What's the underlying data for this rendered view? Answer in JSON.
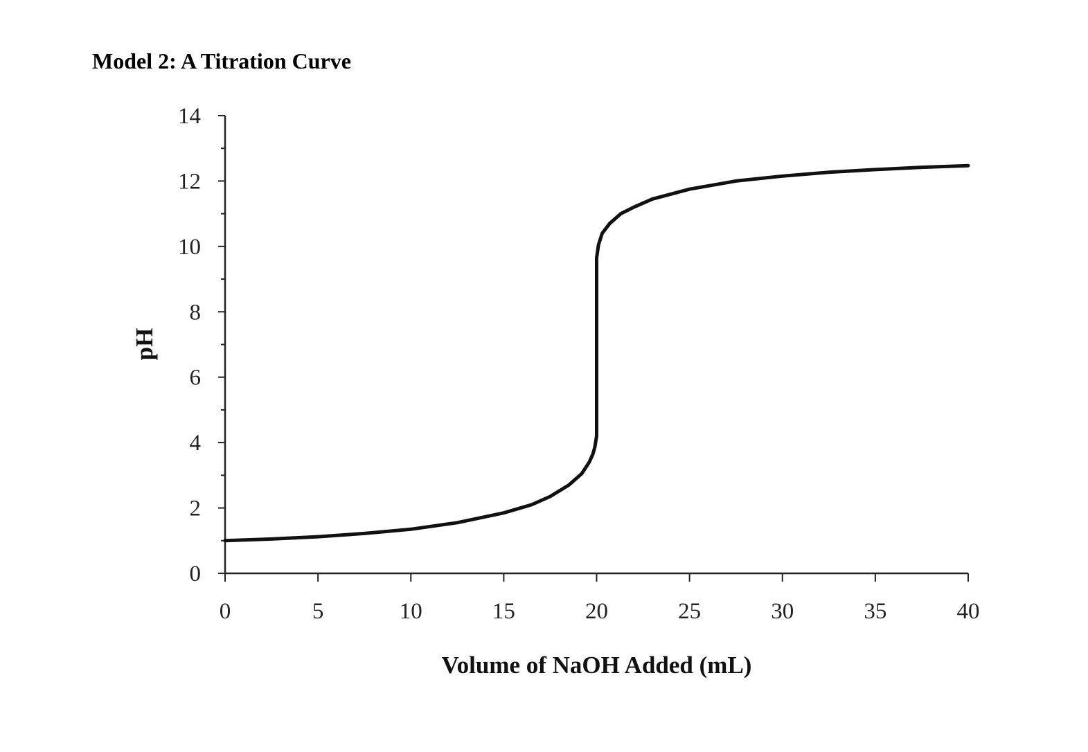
{
  "heading": "Model 2: A Titration Curve",
  "chart_data": {
    "type": "line",
    "title": "",
    "xlabel": "Volume of NaOH Added (mL)",
    "ylabel": "pH",
    "xlim": [
      0,
      40
    ],
    "ylim": [
      0,
      14
    ],
    "xticks": [
      0,
      5,
      10,
      15,
      20,
      25,
      30,
      35,
      40
    ],
    "yticks": [
      0,
      2,
      4,
      6,
      8,
      10,
      12,
      14
    ],
    "grid": false,
    "series": [
      {
        "x": [
          0,
          2.5,
          5,
          7.5,
          10,
          12.5,
          15,
          16.5,
          17.5,
          18.5,
          19.2,
          19.6,
          19.8,
          19.9,
          20.0,
          20.0,
          20.0,
          20.1,
          20.3,
          20.7,
          21.3,
          22,
          23,
          25,
          27.5,
          30,
          32.5,
          35,
          37.5,
          40
        ],
        "y": [
          1.0,
          1.05,
          1.12,
          1.22,
          1.35,
          1.55,
          1.85,
          2.1,
          2.35,
          2.7,
          3.05,
          3.4,
          3.65,
          3.85,
          4.2,
          7.0,
          9.65,
          10.05,
          10.4,
          10.7,
          11.0,
          11.2,
          11.45,
          11.75,
          12.0,
          12.15,
          12.27,
          12.35,
          12.42,
          12.47
        ]
      }
    ]
  }
}
